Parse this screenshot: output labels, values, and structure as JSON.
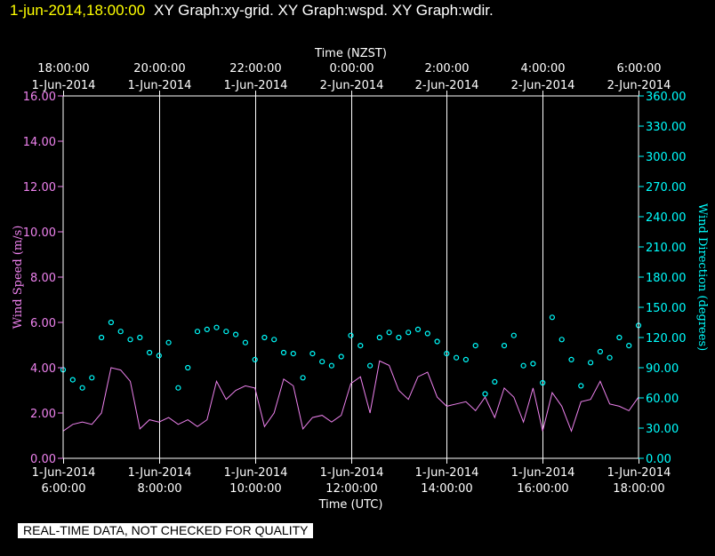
{
  "header": {
    "timestamp": "1-jun-2014,18:00:00",
    "titles": "XY Graph:xy-grid.  XY Graph:wspd.  XY Graph:wdir."
  },
  "notice": "REAL-TIME DATA, NOT CHECKED FOR QUALITY",
  "colors": {
    "background": "#000000",
    "timestamp": "#ffff00",
    "frame": "#ffffff",
    "wind_speed": "#ee82ee",
    "wind_direction": "#00ffff"
  },
  "chart_data": {
    "type": "line",
    "top_axis": {
      "label": "Time (NZST)",
      "ticks": [
        [
          "18:00:00",
          "1-Jun-2014"
        ],
        [
          "20:00:00",
          "1-Jun-2014"
        ],
        [
          "22:00:00",
          "1-Jun-2014"
        ],
        [
          "0:00:00",
          "2-Jun-2014"
        ],
        [
          "2:00:00",
          "2-Jun-2014"
        ],
        [
          "4:00:00",
          "2-Jun-2014"
        ],
        [
          "6:00:00",
          "2-Jun-2014"
        ]
      ]
    },
    "bottom_axis": {
      "label": "Time (UTC)",
      "ticks": [
        [
          "1-Jun-2014",
          "6:00:00"
        ],
        [
          "1-Jun-2014",
          "8:00:00"
        ],
        [
          "1-Jun-2014",
          "10:00:00"
        ],
        [
          "1-Jun-2014",
          "12:00:00"
        ],
        [
          "1-Jun-2014",
          "14:00:00"
        ],
        [
          "1-Jun-2014",
          "16:00:00"
        ],
        [
          "1-Jun-2014",
          "18:00:00"
        ]
      ]
    },
    "x_range_utc_hours": [
      6,
      18
    ],
    "vertical_grid": true,
    "left_axis": {
      "label": "Wind Speed (m/s)",
      "ylim": [
        0,
        16
      ],
      "ticks": [
        "0.00",
        "2.00",
        "4.00",
        "6.00",
        "8.00",
        "10.00",
        "12.00",
        "14.00",
        "16.00"
      ]
    },
    "right_axis": {
      "label": "Wind Direction (degrees)",
      "ylim": [
        0,
        360
      ],
      "ticks": [
        "0.00",
        "30.00",
        "60.00",
        "90.00",
        "120.00",
        "150.00",
        "180.00",
        "210.00",
        "240.00",
        "270.00",
        "300.00",
        "330.00",
        "360.00"
      ]
    },
    "series": [
      {
        "name": "wspd",
        "style": "line",
        "axis": "left",
        "x": [
          6.0,
          6.2,
          6.4,
          6.6,
          6.8,
          7.0,
          7.2,
          7.4,
          7.6,
          7.8,
          8.0,
          8.2,
          8.4,
          8.6,
          8.8,
          9.0,
          9.2,
          9.4,
          9.6,
          9.8,
          10.0,
          10.2,
          10.4,
          10.6,
          10.8,
          11.0,
          11.2,
          11.4,
          11.6,
          11.8,
          12.0,
          12.2,
          12.4,
          12.6,
          12.8,
          13.0,
          13.2,
          13.4,
          13.6,
          13.8,
          14.0,
          14.2,
          14.4,
          14.6,
          14.8,
          15.0,
          15.2,
          15.4,
          15.6,
          15.8,
          16.0,
          16.2,
          16.4,
          16.6,
          16.8,
          17.0,
          17.2,
          17.4,
          17.6,
          17.8,
          18.0
        ],
        "y": [
          1.2,
          1.5,
          1.6,
          1.5,
          2.0,
          4.0,
          3.9,
          3.4,
          1.3,
          1.7,
          1.6,
          1.8,
          1.5,
          1.7,
          1.4,
          1.7,
          3.4,
          2.6,
          3.0,
          3.2,
          3.1,
          1.4,
          2.0,
          3.5,
          3.2,
          1.3,
          1.8,
          1.9,
          1.6,
          1.9,
          3.3,
          3.6,
          2.0,
          4.3,
          4.1,
          3.0,
          2.6,
          3.6,
          3.8,
          2.7,
          2.3,
          2.4,
          2.5,
          2.1,
          2.7,
          1.8,
          3.1,
          2.7,
          1.6,
          3.1,
          1.2,
          2.9,
          2.3,
          1.2,
          2.5,
          2.6,
          3.4,
          2.4,
          2.3,
          2.1,
          2.7
        ]
      },
      {
        "name": "wdir",
        "style": "circles",
        "axis": "right",
        "x": [
          6.0,
          6.2,
          6.4,
          6.6,
          6.8,
          7.0,
          7.2,
          7.4,
          7.6,
          7.8,
          8.0,
          8.2,
          8.4,
          8.6,
          8.8,
          9.0,
          9.2,
          9.4,
          9.6,
          9.8,
          10.0,
          10.2,
          10.4,
          10.6,
          10.8,
          11.0,
          11.2,
          11.4,
          11.6,
          11.8,
          12.0,
          12.2,
          12.4,
          12.6,
          12.8,
          13.0,
          13.2,
          13.4,
          13.6,
          13.8,
          14.0,
          14.2,
          14.4,
          14.6,
          14.8,
          15.0,
          15.2,
          15.4,
          15.6,
          15.8,
          16.0,
          16.2,
          16.4,
          16.6,
          16.8,
          17.0,
          17.2,
          17.4,
          17.6,
          17.8,
          18.0
        ],
        "y": [
          88,
          78,
          70,
          80,
          120,
          135,
          126,
          118,
          120,
          105,
          102,
          115,
          70,
          90,
          126,
          128,
          130,
          126,
          123,
          115,
          98,
          120,
          118,
          105,
          104,
          80,
          104,
          96,
          92,
          101,
          122,
          112,
          92,
          120,
          125,
          120,
          125,
          128,
          124,
          116,
          104,
          100,
          98,
          112,
          64,
          76,
          112,
          122,
          92,
          94,
          75,
          140,
          118,
          98,
          72,
          95,
          106,
          100,
          120,
          112,
          132
        ]
      }
    ]
  }
}
